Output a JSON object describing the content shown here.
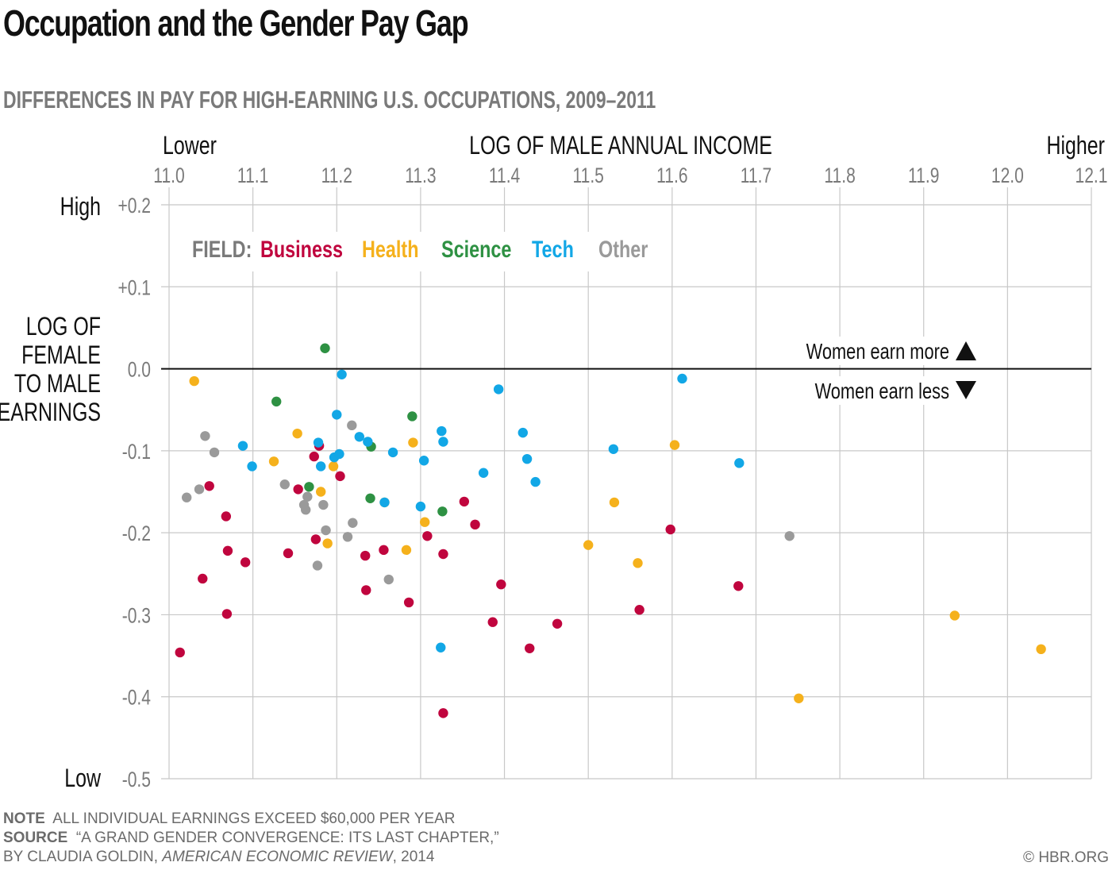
{
  "title": "Occupation and the Gender Pay Gap",
  "subtitle": "DIFFERENCES IN PAY FOR HIGH-EARNING U.S. OCCUPATIONS, 2009–2011",
  "x_low_label": "Lower",
  "x_high_label": "Higher",
  "y_high_label": "High",
  "y_low_label": "Low",
  "annotations": {
    "more": "Women earn more",
    "less": "Women earn less"
  },
  "legend": {
    "title": "FIELD:",
    "items": [
      {
        "name": "Business",
        "color": "#c0053e"
      },
      {
        "name": "Health",
        "color": "#f5b11c"
      },
      {
        "name": "Science",
        "color": "#2e9143"
      },
      {
        "name": "Tech",
        "color": "#12a7e6"
      },
      {
        "name": "Other",
        "color": "#9a9a9a"
      }
    ]
  },
  "footer": {
    "note_label": "NOTE",
    "note_text": "ALL INDIVIDUAL EARNINGS EXCEED $60,000 PER YEAR",
    "source_label": "SOURCE",
    "source_text": "“A GRAND GENDER CONVERGENCE: ITS LAST CHAPTER,”",
    "source_line2_a": "BY CLAUDIA GOLDIN, ",
    "source_line2_journal": "AMERICAN ECONOMIC REVIEW",
    "source_line2_b": ", 2014",
    "copyright": "© HBR.ORG"
  },
  "chart_data": {
    "type": "scatter",
    "xlabel": "LOG OF MALE ANNUAL INCOME",
    "ylabel": [
      "LOG OF",
      "FEMALE",
      "TO MALE",
      "EARNINGS"
    ],
    "xlim": [
      11.0,
      12.1
    ],
    "ylim": [
      -0.5,
      0.2
    ],
    "xticks": [
      11.0,
      11.1,
      11.2,
      11.3,
      11.4,
      11.5,
      11.6,
      11.7,
      11.8,
      11.9,
      12.0,
      12.1
    ],
    "xtick_labels": [
      "11.0",
      "11.1",
      "11.2",
      "11.3",
      "11.4",
      "11.5",
      "11.6",
      "11.7",
      "11.8",
      "11.9",
      "12.0",
      "12.1"
    ],
    "yticks": [
      0.2,
      0.1,
      0.0,
      -0.1,
      -0.2,
      -0.3,
      -0.4,
      -0.5
    ],
    "ytick_labels": [
      "+0.2",
      "+0.1",
      "0.0",
      "-0.1",
      "-0.2",
      "-0.3",
      "-0.4",
      "-0.5"
    ],
    "reference_line_y": 0.0,
    "grid": true,
    "series": [
      {
        "name": "Business",
        "color": "#c0053e",
        "points": [
          [
            11.013,
            -0.346
          ],
          [
            11.04,
            -0.256
          ],
          [
            11.048,
            -0.143
          ],
          [
            11.068,
            -0.18
          ],
          [
            11.07,
            -0.222
          ],
          [
            11.069,
            -0.299
          ],
          [
            11.091,
            -0.236
          ],
          [
            11.142,
            -0.225
          ],
          [
            11.154,
            -0.147
          ],
          [
            11.173,
            -0.107
          ],
          [
            11.175,
            -0.208
          ],
          [
            11.179,
            -0.094
          ],
          [
            11.204,
            -0.131
          ],
          [
            11.234,
            -0.228
          ],
          [
            11.235,
            -0.27
          ],
          [
            11.256,
            -0.221
          ],
          [
            11.286,
            -0.285
          ],
          [
            11.308,
            -0.204
          ],
          [
            11.327,
            -0.226
          ],
          [
            11.327,
            -0.42
          ],
          [
            11.352,
            -0.162
          ],
          [
            11.365,
            -0.19
          ],
          [
            11.386,
            -0.309
          ],
          [
            11.396,
            -0.263
          ],
          [
            11.43,
            -0.341
          ],
          [
            11.463,
            -0.311
          ],
          [
            11.561,
            -0.294
          ],
          [
            11.598,
            -0.196
          ],
          [
            11.679,
            -0.265
          ]
        ]
      },
      {
        "name": "Health",
        "color": "#f5b11c",
        "points": [
          [
            11.03,
            -0.015
          ],
          [
            11.125,
            -0.113
          ],
          [
            11.153,
            -0.079
          ],
          [
            11.181,
            -0.15
          ],
          [
            11.189,
            -0.213
          ],
          [
            11.196,
            -0.119
          ],
          [
            11.257,
            -0.163
          ],
          [
            11.283,
            -0.221
          ],
          [
            11.291,
            -0.09
          ],
          [
            11.305,
            -0.187
          ],
          [
            11.5,
            -0.215
          ],
          [
            11.531,
            -0.163
          ],
          [
            11.559,
            -0.237
          ],
          [
            11.603,
            -0.093
          ],
          [
            11.751,
            -0.402
          ],
          [
            11.937,
            -0.301
          ],
          [
            12.04,
            -0.342
          ]
        ]
      },
      {
        "name": "Science",
        "color": "#2e9143",
        "points": [
          [
            11.128,
            -0.04
          ],
          [
            11.167,
            -0.144
          ],
          [
            11.186,
            0.025
          ],
          [
            11.24,
            -0.158
          ],
          [
            11.241,
            -0.095
          ],
          [
            11.29,
            -0.058
          ],
          [
            11.326,
            -0.174
          ]
        ]
      },
      {
        "name": "Tech",
        "color": "#12a7e6",
        "points": [
          [
            11.088,
            -0.094
          ],
          [
            11.099,
            -0.119
          ],
          [
            11.178,
            -0.09
          ],
          [
            11.181,
            -0.119
          ],
          [
            11.197,
            -0.108
          ],
          [
            11.2,
            -0.056
          ],
          [
            11.203,
            -0.104
          ],
          [
            11.206,
            -0.007
          ],
          [
            11.227,
            -0.083
          ],
          [
            11.237,
            -0.089
          ],
          [
            11.257,
            -0.163
          ],
          [
            11.267,
            -0.102
          ],
          [
            11.3,
            -0.168
          ],
          [
            11.304,
            -0.112
          ],
          [
            11.324,
            -0.34
          ],
          [
            11.325,
            -0.076
          ],
          [
            11.327,
            -0.089
          ],
          [
            11.375,
            -0.127
          ],
          [
            11.393,
            -0.025
          ],
          [
            11.422,
            -0.078
          ],
          [
            11.427,
            -0.11
          ],
          [
            11.437,
            -0.138
          ],
          [
            11.53,
            -0.098
          ],
          [
            11.612,
            -0.012
          ],
          [
            11.68,
            -0.115
          ]
        ]
      },
      {
        "name": "Other",
        "color": "#9a9a9a",
        "points": [
          [
            11.021,
            -0.157
          ],
          [
            11.036,
            -0.147
          ],
          [
            11.043,
            -0.082
          ],
          [
            11.054,
            -0.102
          ],
          [
            11.138,
            -0.141
          ],
          [
            11.161,
            -0.166
          ],
          [
            11.163,
            -0.172
          ],
          [
            11.165,
            -0.156
          ],
          [
            11.177,
            -0.24
          ],
          [
            11.184,
            -0.166
          ],
          [
            11.187,
            -0.197
          ],
          [
            11.213,
            -0.205
          ],
          [
            11.218,
            -0.069
          ],
          [
            11.219,
            -0.188
          ],
          [
            11.262,
            -0.257
          ],
          [
            11.74,
            -0.204
          ]
        ]
      }
    ]
  }
}
